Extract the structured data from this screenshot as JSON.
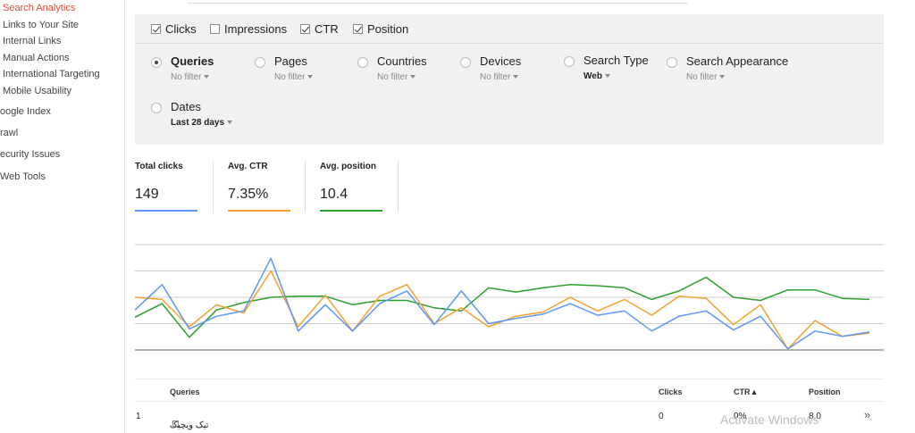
{
  "sidebar": {
    "items": [
      {
        "label": "Search Analytics",
        "active": true
      },
      {
        "label": "Links to Your Site"
      },
      {
        "label": "Internal Links"
      },
      {
        "label": "Manual Actions"
      },
      {
        "label": "International Targeting"
      },
      {
        "label": "Mobile Usability"
      },
      {
        "label": "oogle Index"
      },
      {
        "label": "rawl"
      },
      {
        "label": "ecurity Issues"
      },
      {
        "label": "Web Tools"
      }
    ]
  },
  "metrics": {
    "clicks": {
      "label": "Clicks",
      "checked": true
    },
    "impressions": {
      "label": "Impressions",
      "checked": false
    },
    "ctr": {
      "label": "CTR",
      "checked": true
    },
    "position": {
      "label": "Position",
      "checked": true
    }
  },
  "dimensions": [
    {
      "name": "Queries",
      "filter": "No filter",
      "selected": true
    },
    {
      "name": "Pages",
      "filter": "No filter"
    },
    {
      "name": "Countries",
      "filter": "No filter"
    },
    {
      "name": "Devices",
      "filter": "No filter"
    },
    {
      "name": "Search Type",
      "filter": "Web"
    },
    {
      "name": "Search Appearance",
      "filter": "No filter"
    },
    {
      "name": "Dates",
      "filter": "Last 28 days"
    }
  ],
  "summary": {
    "total_clicks": {
      "label": "Total clicks",
      "value": "149"
    },
    "avg_ctr": {
      "label": "Avg. CTR",
      "value": "7.35%"
    },
    "avg_position": {
      "label": "Avg. position",
      "value": "10.4"
    }
  },
  "colors": {
    "clicks": "#5e97f6",
    "ctr": "#f4a22d",
    "position": "#2ca02c",
    "grid": "#cccccc"
  },
  "chart_data": {
    "type": "line",
    "title": "",
    "xlabel": "",
    "ylabel": "",
    "ylim": [
      0,
      100
    ],
    "x": [
      1,
      2,
      3,
      4,
      5,
      6,
      7,
      8,
      9,
      10,
      11,
      12,
      13,
      14,
      15,
      16,
      17,
      18,
      19,
      20,
      21,
      22,
      23,
      24,
      25,
      26,
      27,
      28
    ],
    "series": [
      {
        "name": "Clicks",
        "values": [
          38,
          62,
          20,
          32,
          37,
          87,
          18,
          43,
          18,
          44,
          56,
          24,
          56,
          25,
          30,
          34,
          44,
          33,
          37,
          18,
          32,
          37,
          19,
          32,
          1,
          18,
          13,
          17
        ]
      },
      {
        "name": "CTR",
        "values": [
          50,
          48,
          22,
          43,
          35,
          75,
          22,
          52,
          18,
          51,
          62,
          25,
          40,
          22,
          32,
          36,
          50,
          37,
          48,
          33,
          51,
          49,
          24,
          43,
          1,
          28,
          13,
          16
        ]
      },
      {
        "name": "Position",
        "values": [
          31,
          44,
          12,
          38,
          45,
          50,
          51,
          51,
          43,
          47,
          47,
          40,
          37,
          59,
          55,
          59,
          62,
          61,
          59,
          48,
          56,
          69,
          50,
          47,
          57,
          57,
          49,
          48
        ]
      }
    ]
  },
  "table": {
    "headers": {
      "queries": "Queries",
      "clicks": "Clicks",
      "ctr": "CTR▲",
      "position": "Position"
    },
    "rows": [
      {
        "index": "1",
        "query": "تیک ویچیک",
        "clicks": "0",
        "ctr": "0%",
        "position": "8.0"
      }
    ],
    "more_glyph": "»"
  },
  "watermark": "Activate Windows"
}
